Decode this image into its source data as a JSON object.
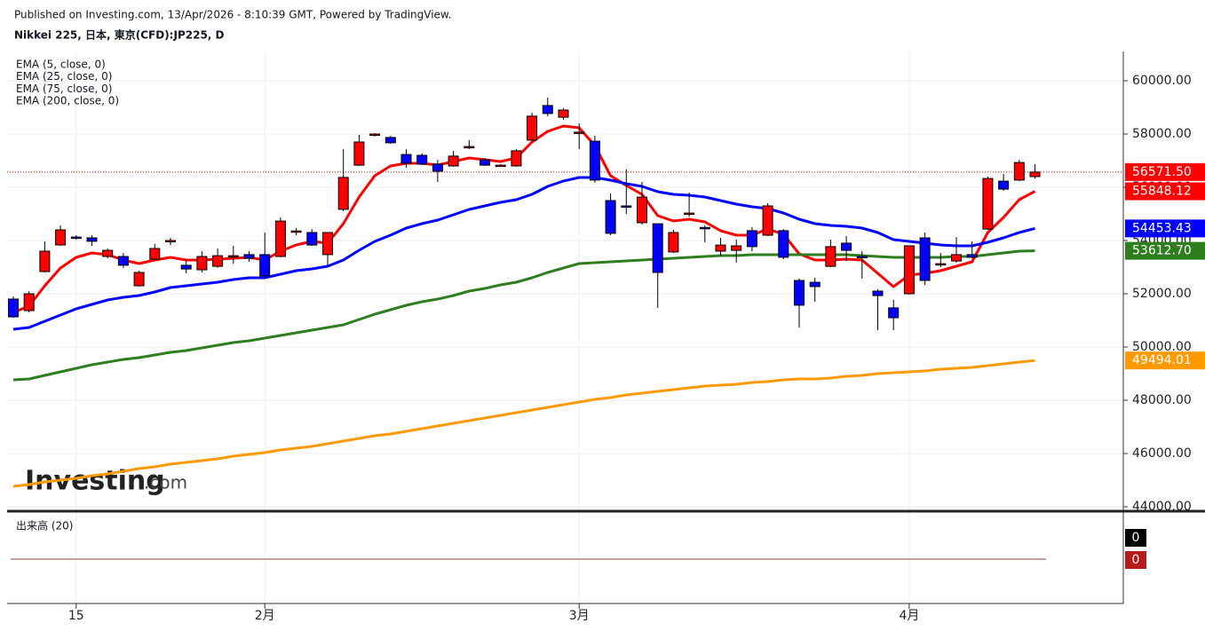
{
  "chart_data": {
    "type": "candlestick",
    "source": "Published on Investing.com, 13/Apr/2026 - 8:10:39 GMT, Powered by TradingView.",
    "title": "Nikkei 225, 日本, 東京(CFD):JP225, D",
    "watermark": [
      "Investing",
      ".com"
    ],
    "categories": [
      null,
      null,
      null,
      null,
      "15",
      null,
      null,
      null,
      null,
      null,
      null,
      null,
      null,
      null,
      null,
      null,
      "2月",
      null,
      null,
      null,
      null,
      null,
      null,
      null,
      null,
      null,
      null,
      null,
      null,
      null,
      null,
      null,
      null,
      null,
      null,
      null,
      "3月",
      null,
      null,
      null,
      null,
      null,
      null,
      null,
      null,
      null,
      null,
      null,
      null,
      null,
      null,
      null,
      null,
      null,
      null,
      null,
      null,
      "4月",
      null,
      null,
      null,
      null,
      null,
      null,
      null,
      null
    ],
    "open": [
      51800,
      51367,
      52833,
      53833,
      54130,
      54100,
      53400,
      53400,
      52300,
      53300,
      53970,
      53070,
      52900,
      53030,
      53400,
      53470,
      53470,
      53400,
      54330,
      54300,
      53470,
      55170,
      56830,
      57970,
      57870,
      57230,
      57200,
      56870,
      56800,
      57500,
      57030,
      56800,
      56800,
      57770,
      59070,
      58630,
      58030,
      57730,
      55500,
      55300,
      54670,
      54630,
      53570,
      55000,
      54490,
      53600,
      53630,
      54370,
      54200,
      54370,
      52500,
      52430,
      53030,
      53900,
      53400,
      52100,
      51470,
      52000,
      54100,
      53100,
      53230,
      53470,
      54430,
      56230,
      56270,
      56400
    ],
    "high": [
      51900,
      52100,
      53967,
      54567,
      54200,
      54200,
      53700,
      53530,
      52870,
      53870,
      54100,
      53270,
      53600,
      53700,
      53800,
      53600,
      54300,
      54870,
      54470,
      54430,
      54300,
      57430,
      57970,
      58030,
      57930,
      57430,
      57270,
      57030,
      57370,
      57770,
      57100,
      56870,
      57430,
      58800,
      59370,
      58970,
      58400,
      57930,
      55770,
      56670,
      56200,
      54630,
      54400,
      55800,
      54570,
      54100,
      54030,
      54500,
      55400,
      54430,
      52570,
      52600,
      54030,
      54170,
      53600,
      52170,
      51770,
      53800,
      54300,
      53530,
      54130,
      53970,
      56400,
      56500,
      57030,
      56870
    ],
    "low": [
      51100,
      51300,
      52800,
      53800,
      54030,
      53800,
      53330,
      52970,
      52270,
      53270,
      53830,
      52770,
      52800,
      52970,
      53130,
      53200,
      52670,
      53370,
      54200,
      53800,
      53030,
      55100,
      56800,
      57900,
      57630,
      56730,
      56830,
      56200,
      56770,
      57430,
      56800,
      56770,
      56770,
      57730,
      58670,
      58530,
      57430,
      56170,
      54200,
      55000,
      54600,
      51470,
      53530,
      54900,
      53930,
      53430,
      53170,
      53600,
      54170,
      53300,
      50730,
      51700,
      53000,
      53230,
      52570,
      50630,
      50630,
      51970,
      52330,
      53000,
      53170,
      53330,
      54400,
      55870,
      56230,
      56330
    ],
    "close": [
      51133,
      52000,
      53600,
      54400,
      54100,
      53970,
      53630,
      53070,
      52800,
      53700,
      54000,
      52930,
      53400,
      53430,
      53430,
      53330,
      52670,
      54730,
      54360,
      53830,
      54300,
      56370,
      57700,
      58000,
      57670,
      56900,
      56870,
      56600,
      57170,
      57530,
      56830,
      56830,
      57370,
      58670,
      58770,
      58900,
      58070,
      56270,
      54270,
      55270,
      55630,
      52800,
      54300,
      55030,
      54470,
      53830,
      53800,
      53770,
      55300,
      53370,
      51570,
      52270,
      53770,
      53630,
      53370,
      51930,
      51100,
      53800,
      52500,
      53130,
      53470,
      53370,
      56330,
      55930,
      56930,
      56571.5
    ],
    "up_color": "#ff0000",
    "down_color": "#0000ff",
    "last_color": "#ff0000",
    "last_label": "56571.50",
    "ylim": [
      43900,
      61000
    ],
    "yticks": [
      {
        "value": 44000,
        "label": "44000.00"
      },
      {
        "value": 46000,
        "label": "46000.00"
      },
      {
        "value": 48000,
        "label": "48000.00"
      },
      {
        "value": 50000,
        "label": "50000.00"
      },
      {
        "value": 52000,
        "label": "52000.00"
      },
      {
        "value": 54000,
        "label": "54000.00"
      },
      {
        "value": 56000,
        "label": "56000.00"
      },
      {
        "value": 58000,
        "label": "58000.00"
      },
      {
        "value": 60000,
        "label": "60000.00"
      }
    ],
    "grid": true,
    "overlays": [
      {
        "name": "EMA (5, close, 0)",
        "color": "#ff0000",
        "last_label": "55848.12",
        "values": [
          51300,
          51533,
          52300,
          52967,
          53367,
          53533,
          53467,
          53267,
          53133,
          53267,
          53367,
          53267,
          53267,
          53300,
          53333,
          53367,
          53267,
          53600,
          53833,
          53967,
          53900,
          54633,
          55633,
          56433,
          56800,
          56900,
          56900,
          56833,
          56967,
          57100,
          57033,
          56967,
          57100,
          57700,
          58100,
          58300,
          58233,
          57567,
          56433,
          56067,
          55733,
          54933,
          54733,
          54800,
          54700,
          54367,
          54200,
          54200,
          54433,
          54233,
          53500,
          53267,
          53267,
          53300,
          53267,
          52767,
          52267,
          52700,
          52767,
          52867,
          53033,
          53200,
          54300,
          54867,
          55533,
          55848.12
        ]
      },
      {
        "name": "EMA (25, close, 0)",
        "color": "#0000ff",
        "last_label": "54453.43",
        "values": [
          50667,
          50733,
          50967,
          51200,
          51433,
          51600,
          51767,
          51867,
          51933,
          52067,
          52233,
          52300,
          52367,
          52433,
          52533,
          52600,
          52600,
          52733,
          52867,
          52933,
          53033,
          53267,
          53633,
          53967,
          54200,
          54467,
          54633,
          54767,
          54967,
          55167,
          55300,
          55433,
          55533,
          55733,
          56033,
          56233,
          56367,
          56367,
          56267,
          56133,
          56033,
          55833,
          55733,
          55700,
          55633,
          55500,
          55367,
          55267,
          55200,
          55033,
          54800,
          54633,
          54567,
          54533,
          54467,
          54300,
          54033,
          53967,
          53900,
          53833,
          53800,
          53800,
          53933,
          54100,
          54300,
          54453.43
        ]
      },
      {
        "name": "EMA (75, close, 0)",
        "color": "#2e7d1f",
        "last_label": "53612.70",
        "values": [
          48767,
          48800,
          48933,
          49067,
          49200,
          49333,
          49433,
          49533,
          49600,
          49700,
          49800,
          49867,
          49967,
          50067,
          50167,
          50233,
          50333,
          50433,
          50533,
          50633,
          50733,
          50833,
          51033,
          51233,
          51400,
          51567,
          51700,
          51800,
          51933,
          52100,
          52200,
          52333,
          52433,
          52600,
          52800,
          52967,
          53133,
          53167,
          53200,
          53233,
          53267,
          53300,
          53333,
          53367,
          53400,
          53433,
          53433,
          53467,
          53467,
          53467,
          53467,
          53467,
          53467,
          53467,
          53433,
          53400,
          53367,
          53367,
          53367,
          53367,
          53400,
          53400,
          53467,
          53533,
          53600,
          53612.7
        ]
      },
      {
        "name": "EMA (200, close, 0)",
        "color": "#ff9900",
        "last_label": "49494.01",
        "values": [
          44767,
          44833,
          44933,
          45000,
          45067,
          45167,
          45233,
          45333,
          45433,
          45500,
          45600,
          45667,
          45733,
          45800,
          45900,
          45967,
          46033,
          46133,
          46200,
          46267,
          46367,
          46467,
          46567,
          46667,
          46733,
          46833,
          46933,
          47033,
          47133,
          47233,
          47333,
          47433,
          47533,
          47633,
          47733,
          47833,
          47933,
          48033,
          48100,
          48200,
          48267,
          48333,
          48400,
          48467,
          48533,
          48567,
          48600,
          48667,
          48700,
          48767,
          48800,
          48800,
          48833,
          48900,
          48933,
          49000,
          49033,
          49067,
          49100,
          49167,
          49200,
          49233,
          49300,
          49367,
          49433,
          49494.01
        ]
      }
    ],
    "volume_pane": {
      "label": "出来高 (20)",
      "volume": 0,
      "volume_color": "#000000",
      "average": 0,
      "average_color": "#b71c1c"
    }
  }
}
